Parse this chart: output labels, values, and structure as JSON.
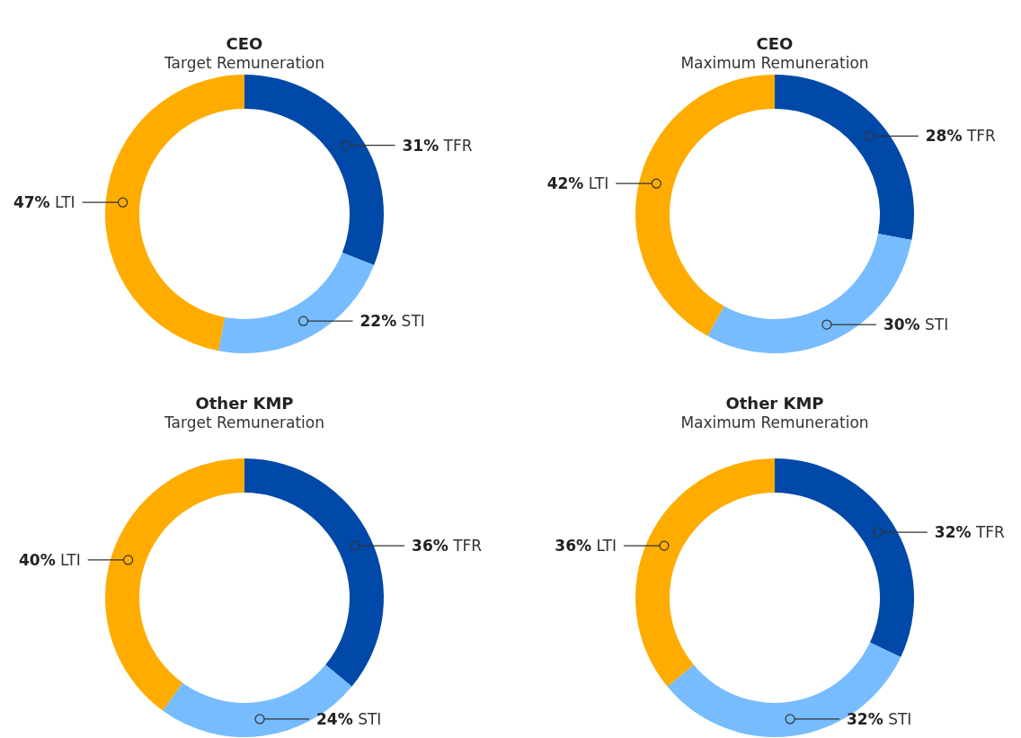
{
  "chart_data": [
    {
      "type": "donut",
      "title": "CEO",
      "subtitle": "Target Remuneration",
      "categories": [
        "TFR",
        "STI",
        "LTI"
      ],
      "values": [
        31,
        22,
        47
      ],
      "colors": [
        "#0049a8",
        "#76bcff",
        "#ffac00"
      ],
      "value_labels": [
        "31%",
        "22%",
        "47%"
      ]
    },
    {
      "type": "donut",
      "title": "CEO",
      "subtitle": "Maximum Remuneration",
      "categories": [
        "TFR",
        "STI",
        "LTI"
      ],
      "values": [
        28,
        30,
        42
      ],
      "colors": [
        "#0049a8",
        "#76bcff",
        "#ffac00"
      ],
      "value_labels": [
        "28%",
        "30%",
        "42%"
      ]
    },
    {
      "type": "donut",
      "title": "Other KMP",
      "subtitle": "Target Remuneration",
      "categories": [
        "TFR",
        "STI",
        "LTI"
      ],
      "values": [
        36,
        24,
        40
      ],
      "colors": [
        "#0049a8",
        "#76bcff",
        "#ffac00"
      ],
      "value_labels": [
        "36%",
        "24%",
        "40%"
      ]
    },
    {
      "type": "donut",
      "title": "Other KMP",
      "subtitle": "Maximum Remuneration",
      "categories": [
        "TFR",
        "STI",
        "LTI"
      ],
      "values": [
        32,
        32,
        36
      ],
      "colors": [
        "#0049a8",
        "#76bcff",
        "#ffac00"
      ],
      "value_labels": [
        "32%",
        "32%",
        "36%"
      ]
    }
  ]
}
